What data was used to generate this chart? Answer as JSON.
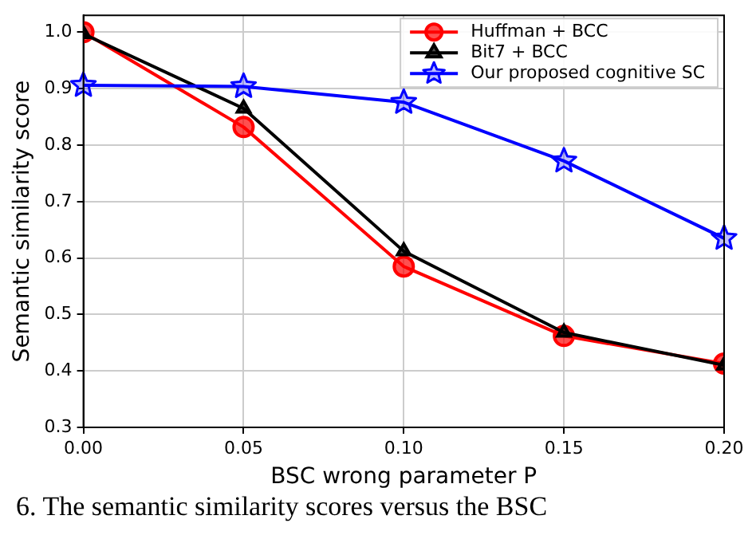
{
  "chart_data": {
    "type": "line",
    "xlabel": "BSC wrong parameter P",
    "ylabel": "Semantic similarity score",
    "x": [
      0,
      0.05,
      0.1,
      0.15,
      0.2
    ],
    "series": [
      {
        "name": "Huffman + BCC",
        "color": "#ff0000",
        "marker": "circle",
        "values": [
          1.0,
          0.832,
          0.585,
          0.462,
          0.413
        ]
      },
      {
        "name": "Bit7 + BCC",
        "color": "#000000",
        "marker": "triangle",
        "values": [
          0.997,
          0.865,
          0.612,
          0.468,
          0.41
        ]
      },
      {
        "name": "Our proposed cognitive SC",
        "color": "#0000ff",
        "marker": "star",
        "values": [
          0.906,
          0.904,
          0.876,
          0.772,
          0.635
        ]
      }
    ],
    "xlim": [
      0,
      0.2
    ],
    "xticks": [
      {
        "value": 0,
        "label": "0.00"
      },
      {
        "value": 0.05,
        "label": "0.05"
      },
      {
        "value": 0.1,
        "label": "0.10"
      },
      {
        "value": 0.15,
        "label": "0.15"
      },
      {
        "value": 0.2,
        "label": "0.20"
      }
    ],
    "ylim": [
      0.3,
      1.03
    ],
    "yticks": [
      0.3,
      0.4,
      0.5,
      0.6,
      0.7,
      0.8,
      0.9,
      {
        "value": 1.0,
        "label": "1.0"
      }
    ],
    "grid": true,
    "legend": "top right",
    "line_style": "solid",
    "annotations": [
      "6. The semantic similarity scores versus the BSC"
    ]
  }
}
